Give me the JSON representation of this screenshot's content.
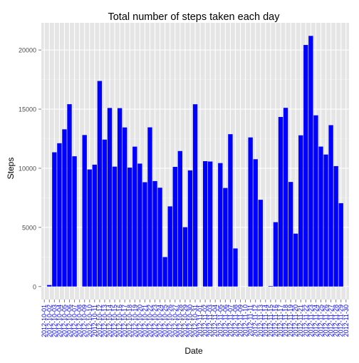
{
  "chart_data": {
    "type": "bar",
    "title": "Total number of steps taken each day",
    "xlabel": "Date",
    "ylabel": "Steps",
    "ylim": [
      -1100,
      22300
    ],
    "yticks": [
      0,
      5000,
      10000,
      15000,
      20000
    ],
    "grid": true,
    "bar_color": "#0000ff",
    "panel_color": "#e5e5e5",
    "grid_color": "#ffffff",
    "tick_label_color": "#0000ff",
    "categories": [
      "2012-10-01",
      "2012-10-02",
      "2012-10-03",
      "2012-10-04",
      "2012-10-05",
      "2012-10-06",
      "2012-10-07",
      "2012-10-08",
      "2012-10-09",
      "2012-10-10",
      "2012-10-11",
      "2012-10-12",
      "2012-10-13",
      "2012-10-14",
      "2012-10-15",
      "2012-10-16",
      "2012-10-17",
      "2012-10-18",
      "2012-10-19",
      "2012-10-20",
      "2012-10-21",
      "2012-10-22",
      "2012-10-23",
      "2012-10-24",
      "2012-10-25",
      "2012-10-26",
      "2012-10-27",
      "2012-10-28",
      "2012-10-29",
      "2012-10-30",
      "2012-10-31",
      "2012-11-01",
      "2012-11-02",
      "2012-11-03",
      "2012-11-04",
      "2012-11-05",
      "2012-11-06",
      "2012-11-07",
      "2012-11-08",
      "2012-11-09",
      "2012-11-10",
      "2012-11-11",
      "2012-11-12",
      "2012-11-13",
      "2012-11-14",
      "2012-11-15",
      "2012-11-16",
      "2012-11-17",
      "2012-11-18",
      "2012-11-19",
      "2012-11-20",
      "2012-11-21",
      "2012-11-22",
      "2012-11-23",
      "2012-11-24",
      "2012-11-25",
      "2012-11-26",
      "2012-11-27",
      "2012-11-28",
      "2012-11-29",
      "2012-11-30"
    ],
    "values": [
      0,
      126,
      11352,
      12116,
      13294,
      15420,
      11015,
      0,
      12811,
      9900,
      10304,
      17382,
      12426,
      15098,
      10139,
      15084,
      13452,
      10056,
      11829,
      10395,
      8821,
      13460,
      8918,
      8355,
      2492,
      6778,
      10119,
      11458,
      5018,
      9819,
      15414,
      0,
      10600,
      10571,
      0,
      10439,
      8334,
      12883,
      3219,
      0,
      0,
      12608,
      10765,
      7336,
      0,
      41,
      5441,
      14339,
      15110,
      8841,
      4472,
      12787,
      20427,
      21194,
      14478,
      11834,
      11162,
      13646,
      10183,
      7047,
      0
    ]
  }
}
